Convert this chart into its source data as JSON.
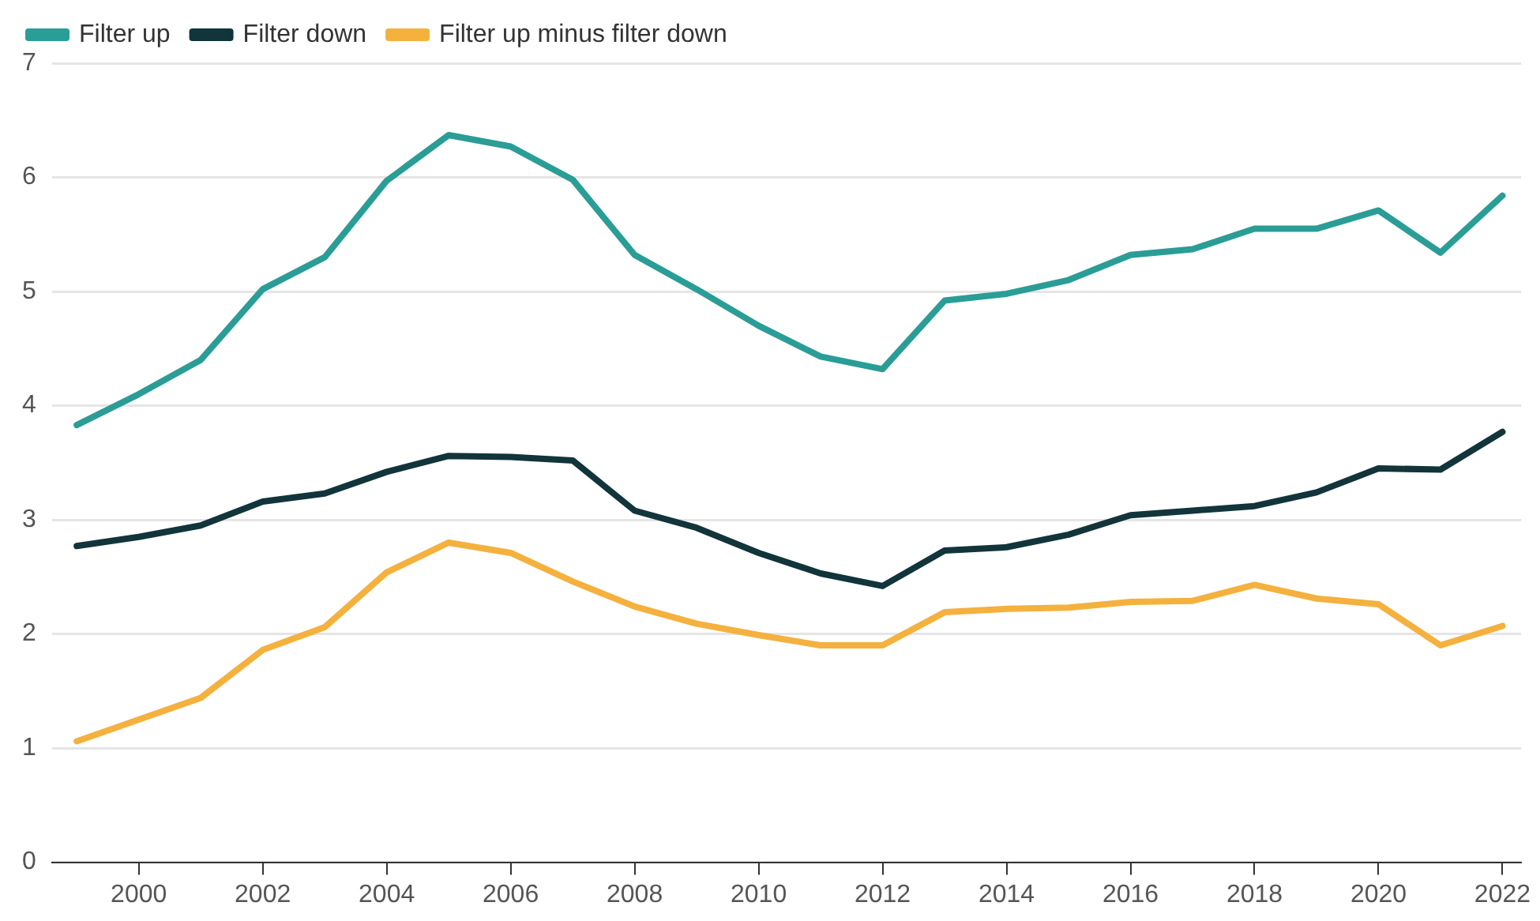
{
  "chart_data": {
    "type": "line",
    "legend": "top left",
    "grid": "y",
    "marker": "none",
    "line_style": "solid",
    "x": [
      1999,
      2000,
      2001,
      2002,
      2003,
      2004,
      2005,
      2006,
      2007,
      2008,
      2009,
      2010,
      2011,
      2012,
      2013,
      2014,
      2015,
      2016,
      2017,
      2018,
      2019,
      2020,
      2021,
      2022
    ],
    "xlim": [
      1998.6,
      2022.3
    ],
    "xticks": [
      2000,
      2002,
      2004,
      2006,
      2008,
      2010,
      2012,
      2014,
      2016,
      2018,
      2020,
      2022
    ],
    "ylim": [
      0,
      7
    ],
    "yticks": [
      0,
      1,
      2,
      3,
      4,
      5,
      6,
      7
    ],
    "series": [
      {
        "name": "Filter up",
        "color": "#2a9d96",
        "values": [
          3.83,
          4.1,
          4.4,
          5.02,
          5.3,
          5.97,
          6.37,
          6.27,
          5.98,
          5.32,
          5.02,
          4.7,
          4.43,
          4.32,
          4.92,
          4.98,
          5.1,
          5.32,
          5.37,
          5.55,
          5.55,
          5.71,
          5.34,
          5.84
        ]
      },
      {
        "name": "Filter down",
        "color": "#12343b",
        "values": [
          2.77,
          2.85,
          2.95,
          3.16,
          3.23,
          3.42,
          3.56,
          3.55,
          3.52,
          3.08,
          2.93,
          2.71,
          2.53,
          2.42,
          2.73,
          2.76,
          2.87,
          3.04,
          3.08,
          3.12,
          3.24,
          3.45,
          3.44,
          3.77
        ]
      },
      {
        "name": "Filter up minus filter down",
        "color": "#f4b13e",
        "values": [
          1.06,
          1.25,
          1.44,
          1.86,
          2.06,
          2.54,
          2.8,
          2.71,
          2.46,
          2.24,
          2.09,
          1.99,
          1.9,
          1.9,
          2.19,
          2.22,
          2.23,
          2.28,
          2.29,
          2.43,
          2.31,
          2.26,
          1.9,
          2.07
        ]
      }
    ]
  }
}
